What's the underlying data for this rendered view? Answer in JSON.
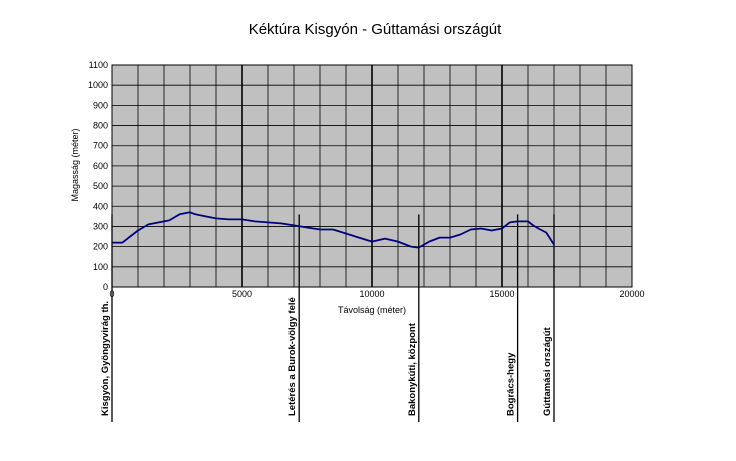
{
  "chart_data": {
    "type": "line",
    "title": "Kéktúra Kisgyón - Gúttamási országút",
    "xlabel": "Távolság (méter)",
    "ylabel": "Magasság (méter)",
    "xlim": [
      0,
      20000
    ],
    "ylim": [
      0,
      1100
    ],
    "x_ticks": [
      0,
      5000,
      10000,
      15000,
      20000
    ],
    "y_ticks": [
      0,
      100,
      200,
      300,
      400,
      500,
      600,
      700,
      800,
      900,
      1000,
      1100
    ],
    "grid": true,
    "legend": "none",
    "colors": {
      "plot_background": "#c0c0c0",
      "line": "#000080",
      "grid": "#000000"
    },
    "series": [
      {
        "x": [
          0,
          400,
          700,
          1000,
          1400,
          1800,
          2200,
          2600,
          2800,
          3000,
          3200,
          3600,
          4000,
          4500,
          5000,
          5500,
          6000,
          6500,
          7000,
          7500,
          8000,
          8500,
          9000,
          9500,
          10000,
          10500,
          11000,
          11500,
          11800,
          12200,
          12600,
          13000,
          13400,
          13800,
          14200,
          14600,
          15000,
          15300,
          15600,
          16000,
          16200,
          16400,
          16700,
          17000
        ],
        "y": [
          220,
          220,
          250,
          280,
          310,
          320,
          330,
          360,
          365,
          370,
          360,
          350,
          340,
          335,
          335,
          325,
          320,
          315,
          305,
          295,
          285,
          285,
          265,
          245,
          225,
          240,
          225,
          200,
          195,
          225,
          245,
          245,
          260,
          285,
          290,
          280,
          290,
          320,
          325,
          325,
          305,
          290,
          270,
          210
        ]
      }
    ],
    "annotations": [
      {
        "x": 0,
        "label": "Kisgyón, Gyöngyvirág th."
      },
      {
        "x": 7200,
        "label": "Letérés a Burok-völgy felé"
      },
      {
        "x": 11800,
        "label": "Bakonykúti, központ"
      },
      {
        "x": 15600,
        "label": "Bogrács-hegy"
      },
      {
        "x": 17000,
        "label": "Gúttamási országút"
      }
    ]
  }
}
